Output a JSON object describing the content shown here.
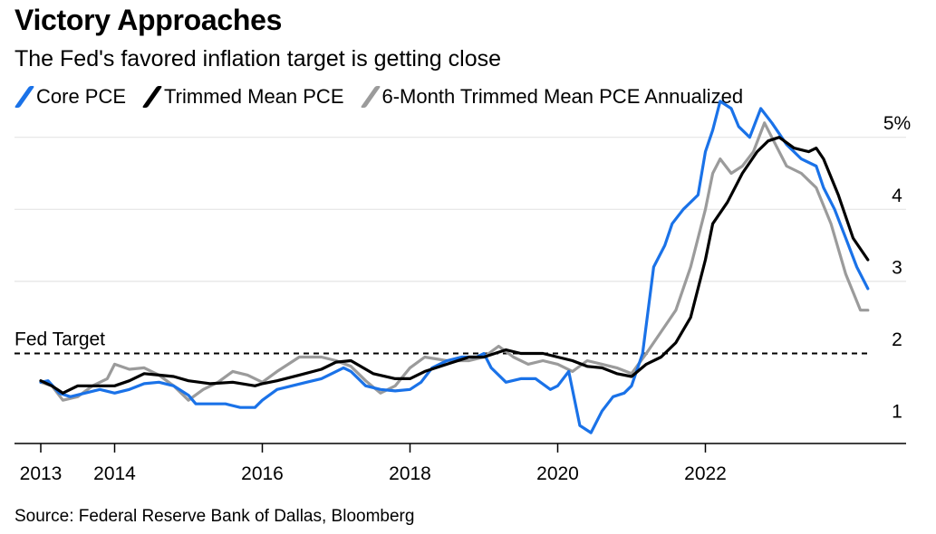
{
  "title": "Victory Approaches",
  "subtitle": "The Fed's favored inflation target is getting close",
  "source": "Source: Federal Reserve Bank of Dallas, Bloomberg",
  "colors": {
    "core": "#1a72e8",
    "trimmed": "#000000",
    "six_month": "#9b9b9b",
    "grid": "#e4e4e4"
  },
  "chart_data": {
    "type": "line",
    "x_unit": "year",
    "xlim": [
      2013,
      2024.2
    ],
    "ylim": [
      0.75,
      5.5
    ],
    "y_ticks": [
      1,
      2,
      3,
      4,
      5
    ],
    "y_tick_labels": [
      "1",
      "2",
      "3",
      "4",
      "5%"
    ],
    "x_ticks": [
      2013,
      2014,
      2016,
      2018,
      2020,
      2022
    ],
    "x_tick_labels": [
      "2013",
      "2014",
      "2016",
      "2018",
      "2020",
      "2022"
    ],
    "grid": "horizontal",
    "legend_position": "top",
    "reference_line": {
      "y": 2,
      "label": "Fed Target"
    },
    "series": [
      {
        "name": "Core PCE",
        "color": "#1a72e8",
        "points": [
          [
            2013.0,
            1.6
          ],
          [
            2013.1,
            1.62
          ],
          [
            2013.25,
            1.45
          ],
          [
            2013.4,
            1.4
          ],
          [
            2013.6,
            1.45
          ],
          [
            2013.8,
            1.5
          ],
          [
            2014.0,
            1.45
          ],
          [
            2014.2,
            1.5
          ],
          [
            2014.4,
            1.58
          ],
          [
            2014.6,
            1.6
          ],
          [
            2014.8,
            1.55
          ],
          [
            2015.0,
            1.42
          ],
          [
            2015.1,
            1.3
          ],
          [
            2015.3,
            1.3
          ],
          [
            2015.5,
            1.3
          ],
          [
            2015.7,
            1.25
          ],
          [
            2015.9,
            1.25
          ],
          [
            2016.0,
            1.35
          ],
          [
            2016.2,
            1.5
          ],
          [
            2016.4,
            1.55
          ],
          [
            2016.6,
            1.6
          ],
          [
            2016.8,
            1.65
          ],
          [
            2017.0,
            1.75
          ],
          [
            2017.1,
            1.8
          ],
          [
            2017.2,
            1.75
          ],
          [
            2017.4,
            1.55
          ],
          [
            2017.6,
            1.5
          ],
          [
            2017.8,
            1.48
          ],
          [
            2018.0,
            1.5
          ],
          [
            2018.15,
            1.6
          ],
          [
            2018.3,
            1.8
          ],
          [
            2018.5,
            1.9
          ],
          [
            2018.7,
            1.95
          ],
          [
            2018.9,
            1.95
          ],
          [
            2019.0,
            2.0
          ],
          [
            2019.1,
            1.8
          ],
          [
            2019.3,
            1.6
          ],
          [
            2019.5,
            1.65
          ],
          [
            2019.7,
            1.65
          ],
          [
            2019.9,
            1.5
          ],
          [
            2020.0,
            1.55
          ],
          [
            2020.15,
            1.75
          ],
          [
            2020.3,
            1.0
          ],
          [
            2020.45,
            0.9
          ],
          [
            2020.6,
            1.2
          ],
          [
            2020.75,
            1.4
          ],
          [
            2020.9,
            1.45
          ],
          [
            2021.0,
            1.55
          ],
          [
            2021.15,
            2.0
          ],
          [
            2021.3,
            3.2
          ],
          [
            2021.45,
            3.5
          ],
          [
            2021.55,
            3.8
          ],
          [
            2021.7,
            4.0
          ],
          [
            2021.9,
            4.2
          ],
          [
            2022.0,
            4.8
          ],
          [
            2022.1,
            5.1
          ],
          [
            2022.2,
            5.5
          ],
          [
            2022.35,
            5.4
          ],
          [
            2022.45,
            5.15
          ],
          [
            2022.6,
            5.0
          ],
          [
            2022.75,
            5.4
          ],
          [
            2022.9,
            5.2
          ],
          [
            2023.1,
            4.9
          ],
          [
            2023.3,
            4.7
          ],
          [
            2023.5,
            4.6
          ],
          [
            2023.6,
            4.3
          ],
          [
            2023.75,
            4.0
          ],
          [
            2023.9,
            3.6
          ],
          [
            2024.05,
            3.2
          ],
          [
            2024.2,
            2.9
          ]
        ]
      },
      {
        "name": "Trimmed Mean PCE",
        "color": "#000000",
        "points": [
          [
            2013.0,
            1.62
          ],
          [
            2013.15,
            1.55
          ],
          [
            2013.3,
            1.45
          ],
          [
            2013.5,
            1.55
          ],
          [
            2013.8,
            1.55
          ],
          [
            2014.0,
            1.55
          ],
          [
            2014.2,
            1.62
          ],
          [
            2014.4,
            1.72
          ],
          [
            2014.6,
            1.7
          ],
          [
            2014.8,
            1.68
          ],
          [
            2015.0,
            1.62
          ],
          [
            2015.3,
            1.58
          ],
          [
            2015.6,
            1.6
          ],
          [
            2015.9,
            1.55
          ],
          [
            2016.0,
            1.58
          ],
          [
            2016.2,
            1.62
          ],
          [
            2016.5,
            1.7
          ],
          [
            2016.8,
            1.78
          ],
          [
            2017.0,
            1.88
          ],
          [
            2017.2,
            1.9
          ],
          [
            2017.5,
            1.72
          ],
          [
            2017.8,
            1.65
          ],
          [
            2018.0,
            1.65
          ],
          [
            2018.2,
            1.75
          ],
          [
            2018.5,
            1.85
          ],
          [
            2018.8,
            1.95
          ],
          [
            2019.0,
            1.95
          ],
          [
            2019.3,
            2.05
          ],
          [
            2019.5,
            2.0
          ],
          [
            2019.8,
            2.0
          ],
          [
            2020.0,
            1.95
          ],
          [
            2020.2,
            1.9
          ],
          [
            2020.4,
            1.82
          ],
          [
            2020.6,
            1.8
          ],
          [
            2020.8,
            1.72
          ],
          [
            2021.0,
            1.68
          ],
          [
            2021.2,
            1.85
          ],
          [
            2021.4,
            1.95
          ],
          [
            2021.6,
            2.15
          ],
          [
            2021.8,
            2.5
          ],
          [
            2022.0,
            3.3
          ],
          [
            2022.1,
            3.8
          ],
          [
            2022.3,
            4.1
          ],
          [
            2022.5,
            4.5
          ],
          [
            2022.7,
            4.8
          ],
          [
            2022.85,
            4.95
          ],
          [
            2023.0,
            5.0
          ],
          [
            2023.2,
            4.85
          ],
          [
            2023.4,
            4.8
          ],
          [
            2023.5,
            4.85
          ],
          [
            2023.6,
            4.7
          ],
          [
            2023.8,
            4.2
          ],
          [
            2024.0,
            3.6
          ],
          [
            2024.2,
            3.3
          ]
        ]
      },
      {
        "name": "6-Month Trimmed Mean PCE Annualized",
        "color": "#9b9b9b",
        "points": [
          [
            2013.0,
            1.6
          ],
          [
            2013.15,
            1.55
          ],
          [
            2013.3,
            1.35
          ],
          [
            2013.5,
            1.4
          ],
          [
            2013.7,
            1.55
          ],
          [
            2013.9,
            1.65
          ],
          [
            2014.0,
            1.85
          ],
          [
            2014.2,
            1.78
          ],
          [
            2014.4,
            1.8
          ],
          [
            2014.6,
            1.7
          ],
          [
            2014.8,
            1.55
          ],
          [
            2015.0,
            1.35
          ],
          [
            2015.2,
            1.5
          ],
          [
            2015.4,
            1.6
          ],
          [
            2015.6,
            1.75
          ],
          [
            2015.8,
            1.7
          ],
          [
            2016.0,
            1.6
          ],
          [
            2016.2,
            1.75
          ],
          [
            2016.5,
            1.95
          ],
          [
            2016.8,
            1.95
          ],
          [
            2017.0,
            1.9
          ],
          [
            2017.2,
            1.82
          ],
          [
            2017.4,
            1.62
          ],
          [
            2017.6,
            1.45
          ],
          [
            2017.8,
            1.55
          ],
          [
            2018.0,
            1.8
          ],
          [
            2018.2,
            1.95
          ],
          [
            2018.5,
            1.9
          ],
          [
            2018.8,
            1.9
          ],
          [
            2019.0,
            1.95
          ],
          [
            2019.2,
            2.1
          ],
          [
            2019.4,
            1.95
          ],
          [
            2019.6,
            1.85
          ],
          [
            2019.8,
            1.9
          ],
          [
            2020.0,
            1.85
          ],
          [
            2020.2,
            1.75
          ],
          [
            2020.4,
            1.9
          ],
          [
            2020.6,
            1.85
          ],
          [
            2020.8,
            1.8
          ],
          [
            2021.0,
            1.72
          ],
          [
            2021.2,
            2.0
          ],
          [
            2021.4,
            2.3
          ],
          [
            2021.6,
            2.6
          ],
          [
            2021.8,
            3.2
          ],
          [
            2022.0,
            4.0
          ],
          [
            2022.1,
            4.5
          ],
          [
            2022.2,
            4.7
          ],
          [
            2022.35,
            4.5
          ],
          [
            2022.5,
            4.6
          ],
          [
            2022.65,
            4.8
          ],
          [
            2022.8,
            5.2
          ],
          [
            2022.95,
            4.9
          ],
          [
            2023.1,
            4.6
          ],
          [
            2023.3,
            4.5
          ],
          [
            2023.5,
            4.3
          ],
          [
            2023.7,
            3.8
          ],
          [
            2023.9,
            3.1
          ],
          [
            2024.1,
            2.6
          ],
          [
            2024.2,
            2.6
          ]
        ]
      }
    ]
  }
}
